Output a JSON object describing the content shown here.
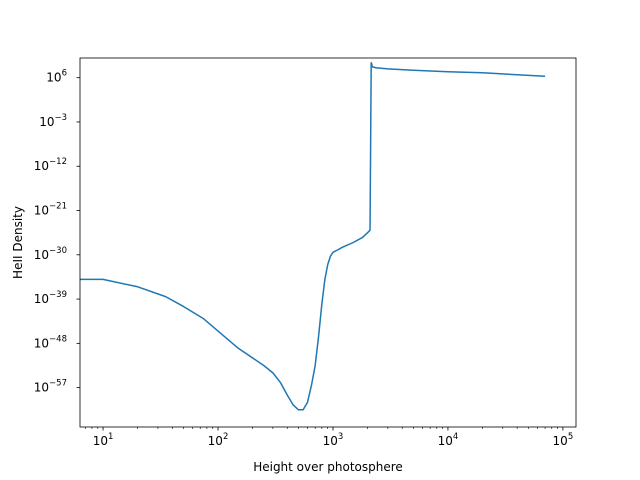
{
  "chart_data": {
    "type": "line",
    "title": "",
    "xlabel": "Height over photosphere",
    "ylabel": "HeII Density",
    "xscale": "log",
    "yscale": "log",
    "xlim": [
      6.3,
      130000
    ],
    "ylim_exponent": [
      -65,
      10
    ],
    "grid": false,
    "legend": "none",
    "line_color": "#1f77b4",
    "x_ticks": [
      {
        "base": "10",
        "exp": "1",
        "value": 10
      },
      {
        "base": "10",
        "exp": "2",
        "value": 100
      },
      {
        "base": "10",
        "exp": "3",
        "value": 1000
      },
      {
        "base": "10",
        "exp": "4",
        "value": 10000
      },
      {
        "base": "10",
        "exp": "5",
        "value": 100000
      }
    ],
    "y_ticks": [
      {
        "base": "10",
        "exp": "6",
        "exponent": 6
      },
      {
        "base": "10",
        "exp": "−3",
        "exponent": -3
      },
      {
        "base": "10",
        "exp": "−12",
        "exponent": -12
      },
      {
        "base": "10",
        "exp": "−21",
        "exponent": -21
      },
      {
        "base": "10",
        "exp": "−30",
        "exponent": -30
      },
      {
        "base": "10",
        "exp": "−39",
        "exponent": -39
      },
      {
        "base": "10",
        "exp": "−48",
        "exponent": -48
      },
      {
        "base": "10",
        "exp": "−57",
        "exponent": -57
      }
    ],
    "series": [
      {
        "x": [
          6.3,
          10,
          20,
          35,
          50,
          75,
          100,
          150,
          250,
          300,
          350,
          400,
          450,
          500,
          550,
          600,
          650,
          700,
          750,
          800,
          850,
          900,
          950,
          1000,
          1100,
          1200,
          1500,
          1800,
          2000,
          2100,
          2150,
          2160,
          2200,
          2400,
          3000,
          5000,
          10000,
          20000,
          40000,
          70000
        ],
        "y_exponent": [
          -35,
          -35,
          -36.5,
          -38.5,
          -40.5,
          -43,
          -45.5,
          -49,
          -52.5,
          -54,
          -56,
          -58.5,
          -60.5,
          -61.5,
          -61.5,
          -60,
          -56.5,
          -52.5,
          -46.5,
          -40,
          -35,
          -32,
          -30.3,
          -29.5,
          -29,
          -28.5,
          -27.5,
          -26.5,
          -25.5,
          -25,
          9,
          9,
          8.2,
          8,
          7.8,
          7.5,
          7.2,
          7,
          6.6,
          6.3
        ]
      }
    ]
  }
}
